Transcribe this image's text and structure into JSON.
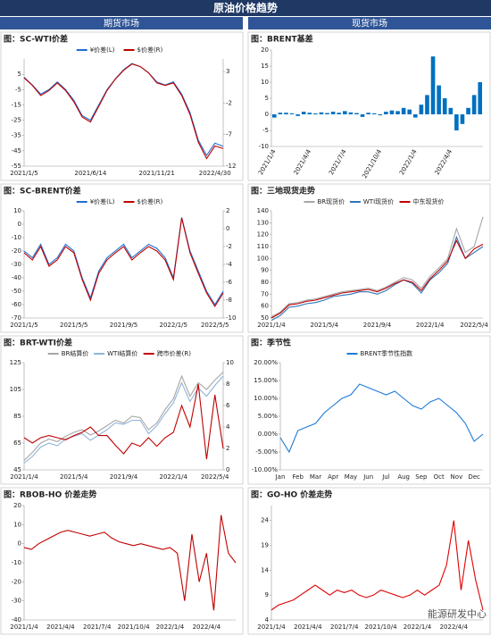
{
  "header": {
    "title": "原油价格趋势",
    "left": "期货市场",
    "right": "现货市场"
  },
  "watermark": "能源研发中心",
  "chart_data": [
    {
      "type": "line",
      "title": "图：SC-WTI价差",
      "legend": "top",
      "categories": [
        "2021/1/5",
        null,
        null,
        null,
        null,
        null,
        null,
        null,
        "2021/6/14",
        null,
        null,
        null,
        null,
        null,
        null,
        null,
        "2021/11/21",
        null,
        null,
        null,
        null,
        null,
        null,
        "2022/4/30",
        null
      ],
      "series": [
        {
          "name": "¥价差(L)",
          "color": "#1f6fd1",
          "values": [
            3,
            -2,
            -8,
            -5,
            0,
            -5,
            -12,
            -22,
            -25,
            -15,
            -5,
            2,
            8,
            12,
            10,
            6,
            0,
            -2,
            0,
            -8,
            -20,
            -38,
            -48,
            -40,
            -42
          ]
        },
        {
          "name": "$价差(R)",
          "color": "#c00000",
          "axis": "y2",
          "values": [
            2,
            0.8,
            -0.8,
            0,
            1.2,
            0,
            -1.8,
            -4.2,
            -5,
            -2.5,
            0,
            1.8,
            3.2,
            4.2,
            3.8,
            2.8,
            1.2,
            0.8,
            1.2,
            -0.8,
            -3.8,
            -8.2,
            -10.8,
            -8.8,
            -9.2
          ]
        }
      ],
      "ylim": [
        -55,
        15
      ],
      "yticks": [
        5,
        -5,
        -15,
        -25,
        -35,
        -45,
        -55
      ],
      "y2lim": [
        -12,
        5
      ],
      "y2ticks": [
        3,
        -2,
        -7,
        -12
      ]
    },
    {
      "type": "bar",
      "title": "图：BRENT基差",
      "rotate_labels": true,
      "categories": [
        "2021/1/4",
        null,
        null,
        null,
        null,
        null,
        "2021/4/4",
        null,
        null,
        null,
        null,
        null,
        "2021/7/4",
        null,
        null,
        null,
        null,
        null,
        "2021/10/4",
        null,
        null,
        null,
        null,
        null,
        "2022/1/4",
        null,
        null,
        null,
        null,
        null,
        "2022/4/4",
        null,
        null,
        null,
        null,
        null
      ],
      "color": "#0070c0",
      "values": [
        -1,
        0.5,
        0.5,
        0.3,
        -0.5,
        0.8,
        0.5,
        0.3,
        0.6,
        0.4,
        0.8,
        0.5,
        1,
        0.6,
        0.4,
        -0.8,
        0.5,
        0.3,
        -0.3,
        0.8,
        1.2,
        1,
        2,
        1.5,
        -1,
        3,
        6,
        18,
        9,
        5,
        2,
        -5,
        -3,
        2,
        6,
        10
      ],
      "ylim": [
        -10,
        20
      ],
      "yticks": [
        20,
        15,
        10,
        5,
        0,
        -5,
        -10
      ]
    },
    {
      "type": "line",
      "title": "图：SC-BRENT价差",
      "legend": "top",
      "categories": [
        "2021/1/5",
        null,
        null,
        null,
        null,
        null,
        "2021/5/5",
        null,
        null,
        null,
        null,
        null,
        "2021/9/5",
        null,
        null,
        null,
        null,
        null,
        "2022/1/5",
        null,
        null,
        null,
        null,
        "2022/5/5",
        null
      ],
      "series": [
        {
          "name": "¥价差(L)",
          "color": "#1f6fd1",
          "values": [
            -20,
            -25,
            -15,
            -30,
            -25,
            -15,
            -20,
            -40,
            -55,
            -35,
            -25,
            -20,
            -15,
            -25,
            -20,
            -15,
            -18,
            -25,
            -40,
            5,
            -20,
            -35,
            -50,
            -60,
            -50
          ]
        },
        {
          "name": "$价差(R)",
          "color": "#c00000",
          "axis": "y2",
          "values": [
            -2.7,
            -3.5,
            -2,
            -4.2,
            -3.5,
            -2,
            -2.7,
            -5.7,
            -8,
            -5,
            -3.5,
            -2.7,
            -2,
            -3.5,
            -2.7,
            -2,
            -2.5,
            -3.5,
            -5.7,
            1.2,
            -2.7,
            -5,
            -7.2,
            -8.7,
            -7.2
          ]
        }
      ],
      "ylim": [
        -70,
        10
      ],
      "yticks": [
        10,
        0,
        -10,
        -20,
        -30,
        -40,
        -50,
        -60,
        -70
      ],
      "y2lim": [
        -10,
        2
      ],
      "y2ticks": [
        2,
        0,
        -2,
        -4,
        -6,
        -8,
        -10
      ]
    },
    {
      "type": "line",
      "title": "图：三地现货走势",
      "legend": "top",
      "categories": [
        "2021/1/4",
        null,
        null,
        null,
        null,
        null,
        "2021/5/4",
        null,
        null,
        null,
        null,
        null,
        "2021/9/4",
        null,
        null,
        null,
        null,
        null,
        "2022/1/4",
        null,
        null,
        null,
        null,
        "2022/5/4",
        null
      ],
      "series": [
        {
          "name": "BR现货价",
          "color": "#a6a6a6",
          "values": [
            51,
            55,
            62,
            63,
            65,
            66,
            68,
            70,
            72,
            73,
            74,
            75,
            73,
            76,
            80,
            84,
            82,
            75,
            85,
            92,
            100,
            125,
            105,
            110,
            135
          ]
        },
        {
          "name": "WTI现货价",
          "color": "#2e75b6",
          "values": [
            48,
            52,
            59,
            60,
            62,
            63,
            65,
            68,
            69,
            70,
            72,
            72,
            70,
            73,
            78,
            82,
            79,
            71,
            82,
            88,
            96,
            118,
            100,
            105,
            110
          ]
        },
        {
          "name": "中东现货价",
          "color": "#c00000",
          "values": [
            50,
            54,
            61,
            62,
            64,
            65,
            67,
            69,
            71,
            72,
            73,
            74,
            72,
            75,
            79,
            82,
            80,
            73,
            83,
            90,
            98,
            115,
            100,
            108,
            112
          ]
        }
      ],
      "ylim": [
        50,
        140
      ],
      "yticks": [
        140,
        130,
        120,
        110,
        100,
        90,
        80,
        70,
        60,
        50
      ]
    },
    {
      "type": "line",
      "title": "图：BRT-WTI价差",
      "legend": "top",
      "categories": [
        "2021/1/4",
        null,
        null,
        null,
        null,
        null,
        "2021/5/4",
        null,
        null,
        null,
        null,
        null,
        "2021/9/4",
        null,
        null,
        null,
        null,
        null,
        "2022/1/4",
        null,
        null,
        null,
        null,
        "2022/5/4",
        null
      ],
      "series": [
        {
          "name": "BR结算价",
          "color": "#a6a6a6",
          "values": [
            52,
            58,
            65,
            68,
            66,
            70,
            73,
            75,
            71,
            74,
            78,
            82,
            80,
            85,
            84,
            75,
            80,
            90,
            98,
            115,
            100,
            110,
            105,
            112,
            118
          ]
        },
        {
          "name": "WTI结算价",
          "color": "#8fb4d9",
          "values": [
            50,
            55,
            62,
            65,
            63,
            68,
            70,
            72,
            67,
            71,
            75,
            80,
            79,
            82,
            82,
            72,
            78,
            87,
            95,
            110,
            96,
            106,
            100,
            108,
            115
          ]
        },
        {
          "name": "跨市价差(R)",
          "color": "#c00000",
          "axis": "y2",
          "values": [
            3,
            2.5,
            3,
            3.2,
            3,
            2.8,
            3.2,
            3.5,
            4,
            3.2,
            3.2,
            2.3,
            1.5,
            2.5,
            2.2,
            3,
            2.2,
            3,
            3.5,
            6,
            4,
            8,
            1,
            7,
            2
          ]
        }
      ],
      "ylim": [
        45,
        125
      ],
      "yticks": [
        125,
        105,
        85,
        65,
        45
      ],
      "y2lim": [
        0,
        10
      ],
      "y2ticks": [
        10,
        8,
        6,
        4,
        2,
        0
      ]
    },
    {
      "type": "line",
      "title": "图：季节性",
      "legend": "top",
      "categories": [
        "Jan",
        null,
        "Feb",
        null,
        "Mar",
        null,
        "Apr",
        null,
        "May",
        null,
        "Jun",
        null,
        "Jul",
        null,
        "Aug",
        null,
        "Sep",
        null,
        "Oct",
        null,
        "Nov",
        null,
        "Dec",
        null
      ],
      "series": [
        {
          "name": "BRENT季节性指数",
          "color": "#1f7ad6",
          "values": [
            -1,
            -5,
            1,
            2,
            3,
            6,
            8,
            10,
            11,
            14,
            13,
            12,
            11,
            12,
            10,
            8,
            7,
            9,
            10,
            8,
            6,
            3,
            -2,
            0
          ]
        }
      ],
      "ylim": [
        -10,
        20
      ],
      "yticks": [
        {
          "value": 20,
          "label": "20.00%"
        },
        {
          "value": 15,
          "label": "15.00%"
        },
        {
          "value": 10,
          "label": "10.00%"
        },
        {
          "value": 5,
          "label": "5.00%"
        },
        {
          "value": 0,
          "label": "0.00%"
        },
        {
          "value": -5,
          "label": "-5.00%"
        },
        {
          "value": -10,
          "label": "-10.00%"
        }
      ]
    },
    {
      "type": "line",
      "title": "图：RBOB-HO 价差走势",
      "categories": [
        "2021/1/4",
        null,
        null,
        null,
        null,
        "2021/4/4",
        null,
        null,
        null,
        null,
        "2021/7/4",
        null,
        null,
        null,
        null,
        "2021/10/4",
        null,
        null,
        null,
        null,
        "2022/1/4",
        null,
        null,
        null,
        null,
        "2022/4/4",
        null,
        null,
        null,
        null
      ],
      "color": "#c00000",
      "values": [
        -2,
        -3,
        0,
        2,
        4,
        6,
        7,
        6,
        5,
        4,
        5,
        6,
        3,
        1,
        0,
        -1,
        0,
        -1,
        -2,
        -3,
        -2,
        -5,
        -30,
        5,
        -20,
        -5,
        -35,
        15,
        -5,
        -10
      ],
      "ylim": [
        -40,
        20
      ],
      "yticks": [
        20,
        10,
        0,
        -10,
        -20,
        -30,
        -40
      ]
    },
    {
      "type": "line",
      "title": "图：GO-HO 价差走势",
      "categories": [
        "2021/1/4",
        null,
        null,
        null,
        null,
        "2021/4/4",
        null,
        null,
        null,
        null,
        "2021/7/4",
        null,
        null,
        null,
        null,
        "2021/10/4",
        null,
        null,
        null,
        null,
        "2022/1/4",
        null,
        null,
        null,
        null,
        "2022/4/4",
        null,
        null,
        null,
        null
      ],
      "color": "#e00000",
      "values": [
        6,
        7,
        7.5,
        8,
        9,
        10,
        11,
        10,
        9,
        10,
        9.5,
        10,
        9,
        8.5,
        9,
        10,
        9.5,
        9,
        8.5,
        9,
        10,
        9,
        10,
        11,
        15,
        24,
        10,
        20,
        12,
        6
      ],
      "ylim": [
        4,
        27
      ],
      "yticks": [
        24,
        19,
        14,
        9,
        4
      ]
    }
  ]
}
